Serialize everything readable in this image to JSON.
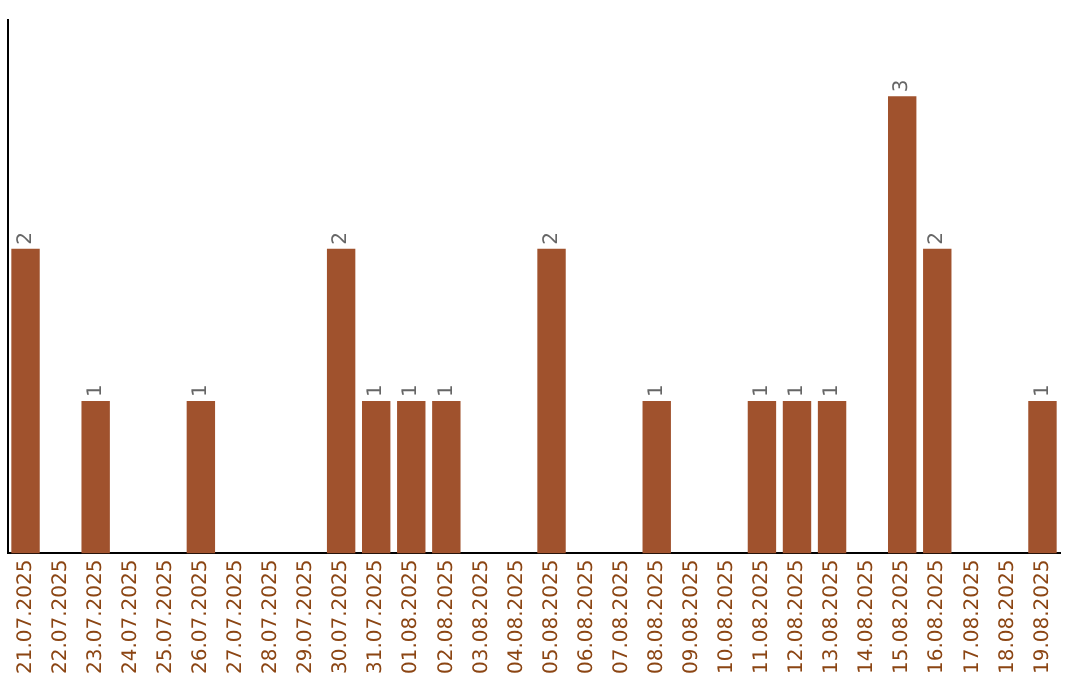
{
  "chart_data": {
    "type": "bar",
    "categories": [
      "21.07.2025",
      "22.07.2025",
      "23.07.2025",
      "24.07.2025",
      "25.07.2025",
      "26.07.2025",
      "27.07.2025",
      "28.07.2025",
      "29.07.2025",
      "30.07.2025",
      "31.07.2025",
      "01.08.2025",
      "02.08.2025",
      "03.08.2025",
      "04.08.2025",
      "05.08.2025",
      "06.08.2025",
      "07.08.2025",
      "08.08.2025",
      "09.08.2025",
      "10.08.2025",
      "11.08.2025",
      "12.08.2025",
      "13.08.2025",
      "14.08.2025",
      "15.08.2025",
      "16.08.2025",
      "17.08.2025",
      "18.08.2025",
      "19.08.2025"
    ],
    "values": [
      2,
      0,
      1,
      0,
      0,
      1,
      0,
      0,
      0,
      2,
      1,
      1,
      1,
      0,
      0,
      2,
      0,
      0,
      1,
      0,
      0,
      1,
      1,
      1,
      0,
      3,
      2,
      0,
      0,
      1
    ],
    "value_labels": [
      "2",
      null,
      "1",
      null,
      null,
      "1",
      null,
      null,
      null,
      "2",
      "1",
      "1",
      "1",
      null,
      null,
      "2",
      null,
      null,
      "1",
      null,
      null,
      "1",
      "1",
      "1",
      null,
      "3",
      "2",
      null,
      null,
      "1"
    ],
    "color": "#a0522d",
    "grid": false,
    "legend": false,
    "tick_labels": "x"
  }
}
